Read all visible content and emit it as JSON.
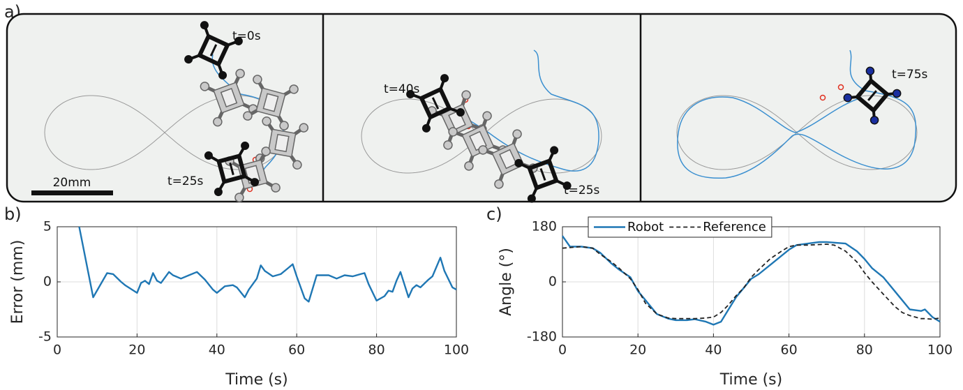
{
  "panel_a": {
    "label": "a)",
    "scale_bar": "20mm",
    "annotations": [
      "t=0s",
      "t=25s",
      "t=40s",
      "t=25s",
      "t=75s"
    ]
  },
  "chart_data": [
    {
      "type": "line",
      "panel_label": "b)",
      "xlabel": "Time (s)",
      "ylabel": "Error (mm)",
      "x": [
        5.5,
        9,
        12.5,
        14,
        16,
        17,
        20,
        21,
        22,
        23,
        24,
        25,
        26,
        28,
        29,
        31,
        33,
        35,
        37,
        39,
        40,
        42,
        44,
        45,
        47,
        48,
        50,
        51,
        52,
        54,
        56,
        58,
        59,
        60,
        62,
        63,
        65,
        68,
        70,
        72,
        74,
        76,
        77,
        78,
        80,
        82,
        83,
        84,
        85,
        86,
        88,
        89,
        90,
        91,
        93,
        94,
        96,
        97,
        99,
        100
      ],
      "values": [
        5,
        -1.4,
        0.8,
        0.7,
        0,
        -0.3,
        -1,
        -0.1,
        0.1,
        -0.2,
        0.8,
        0.1,
        -0.1,
        0.9,
        0.6,
        0.3,
        0.6,
        0.9,
        0.2,
        -0.7,
        -1,
        -0.4,
        -0.3,
        -0.5,
        -1.4,
        -0.7,
        0.3,
        1.5,
        1,
        0.5,
        0.7,
        1.3,
        1.6,
        0.5,
        -1.5,
        -1.8,
        0.6,
        0.6,
        0.3,
        0.6,
        0.5,
        0.7,
        0.8,
        -0.2,
        -1.7,
        -1.3,
        -0.8,
        -0.9,
        0.1,
        0.9,
        -1.4,
        -0.6,
        -0.3,
        -0.5,
        0.2,
        0.5,
        2.2,
        1,
        -0.5,
        -0.7
      ],
      "color": "#1f77b4",
      "xlim": [
        0,
        100
      ],
      "xticks": [
        0,
        20,
        40,
        60,
        80,
        100
      ],
      "ylim": [
        -5,
        5
      ],
      "yticks": [
        -5,
        0,
        5
      ],
      "grid": true
    },
    {
      "type": "line",
      "panel_label": "c)",
      "xlabel": "Time (s)",
      "ylabel": "Angle (°)",
      "x": [
        0,
        2,
        5,
        8,
        10,
        13,
        15,
        18,
        20,
        22,
        25,
        28,
        30,
        33,
        35,
        38,
        40,
        42,
        44,
        46,
        48,
        50,
        52,
        55,
        58,
        60,
        62,
        65,
        68,
        70,
        72,
        75,
        78,
        80,
        82,
        85,
        88,
        90,
        92,
        95,
        96,
        98,
        100
      ],
      "series": [
        {
          "name": "Robot",
          "color": "#1f77b4",
          "linestyle": "solid",
          "values": [
            150,
            115,
            115,
            110,
            95,
            60,
            40,
            15,
            -30,
            -60,
            -105,
            -120,
            -125,
            -125,
            -122,
            -130,
            -140,
            -130,
            -90,
            -50,
            -20,
            10,
            25,
            55,
            85,
            105,
            120,
            125,
            130,
            130,
            128,
            125,
            100,
            75,
            45,
            15,
            -30,
            -60,
            -90,
            -95,
            -90,
            -115,
            -130
          ]
        },
        {
          "name": "Reference",
          "color": "#222222",
          "linestyle": "dashed",
          "values": [
            110,
            112,
            115,
            110,
            90,
            65,
            45,
            10,
            -25,
            -70,
            -105,
            -118,
            -120,
            -120,
            -120,
            -118,
            -115,
            -100,
            -75,
            -45,
            -20,
            15,
            40,
            75,
            100,
            115,
            120,
            120,
            122,
            123,
            120,
            100,
            65,
            30,
            0,
            -40,
            -80,
            -100,
            -110,
            -120,
            -120,
            -122,
            -118
          ]
        }
      ],
      "xlim": [
        0,
        100
      ],
      "xticks": [
        0,
        20,
        40,
        60,
        80,
        100
      ],
      "ylim": [
        -180,
        180
      ],
      "yticks": [
        -180,
        0,
        180
      ],
      "grid": true,
      "legend": "top"
    }
  ]
}
